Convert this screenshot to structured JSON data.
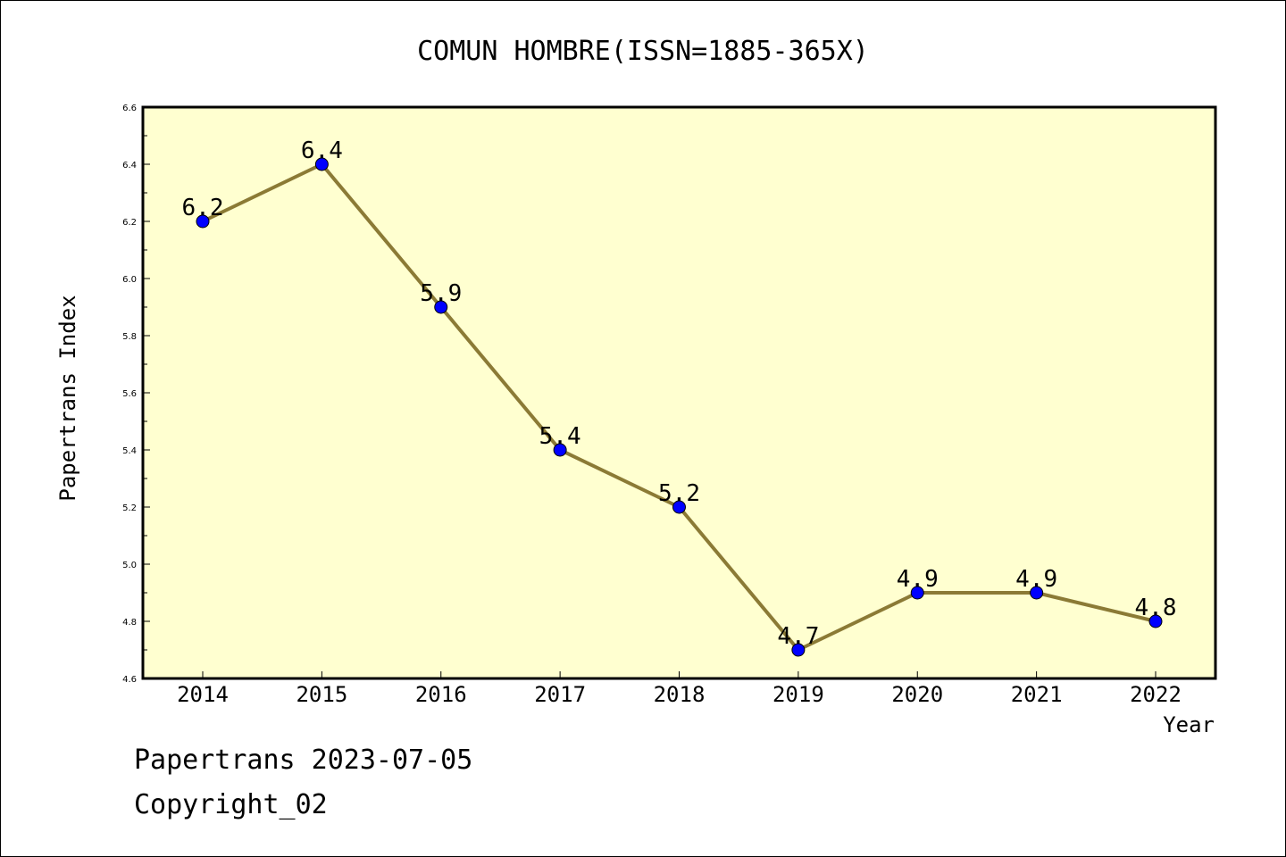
{
  "chart_data": {
    "type": "line",
    "title": "COMUN HOMBRE(ISSN=1885-365X)",
    "xlabel": "Year",
    "ylabel": "Papertrans Index",
    "categories": [
      "2014",
      "2015",
      "2016",
      "2017",
      "2018",
      "2019",
      "2020",
      "2021",
      "2022"
    ],
    "values": [
      6.2,
      6.4,
      5.9,
      5.4,
      5.2,
      4.7,
      4.9,
      4.9,
      4.8
    ],
    "data_labels": [
      "6.2",
      "6.4",
      "5.9",
      "5.4",
      "5.2",
      "4.7",
      "4.9",
      "4.9",
      "4.8"
    ],
    "ylim": [
      4.6,
      6.6
    ],
    "yticks": [
      "4.6",
      "4.8",
      "5.0",
      "5.2",
      "5.4",
      "5.6",
      "5.8",
      "6.0",
      "6.2",
      "6.4",
      "6.6"
    ],
    "grid": false,
    "legend": "none",
    "colors": {
      "plot_background": "#ffffd0",
      "line": "#8b7a35",
      "marker": "#0000ff"
    }
  },
  "footer": {
    "date_line": "Papertrans 2023-07-05",
    "copyright": "Copyright_02"
  }
}
